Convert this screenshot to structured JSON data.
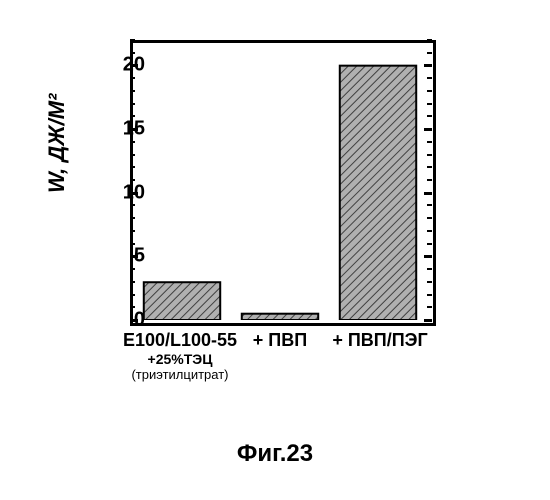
{
  "chart": {
    "type": "bar",
    "ylabel": "W, ДЖ/М²",
    "ylim": [
      0,
      22
    ],
    "yticks": [
      0,
      5,
      10,
      15,
      20
    ],
    "categories": [
      {
        "line1": "Е100/L100-55",
        "line2": "+25%ТЭЦ",
        "line3": "(триэтилцитрат)"
      },
      {
        "line1": "+ ПВП"
      },
      {
        "line1": "+ ПВП/ПЭГ"
      }
    ],
    "values": [
      3.0,
      0.5,
      20.2
    ],
    "bar_color": "#8a8a8a",
    "hatch": "diagonal",
    "bar_border": "#000000",
    "background": "#ffffff",
    "axis_color": "#000000",
    "label_fontsize": 20,
    "axis_fontsize": 22
  },
  "caption": "Фиг.23"
}
